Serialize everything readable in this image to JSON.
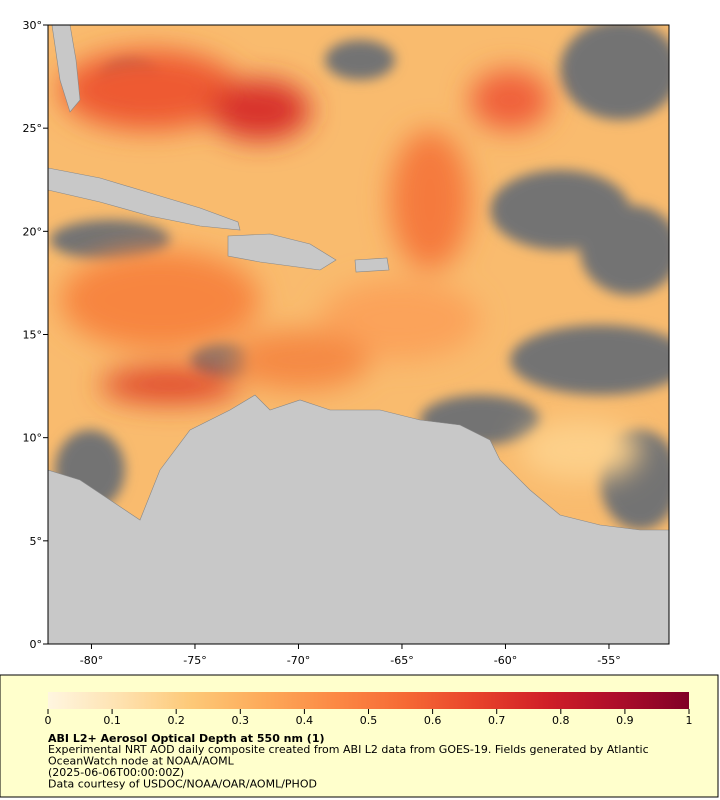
{
  "map": {
    "xlim": [
      -82.1,
      -52.1
    ],
    "ylim": [
      0,
      30
    ],
    "xticks": [
      {
        "value": -80,
        "label": "-80°"
      },
      {
        "value": -75,
        "label": "-75°"
      },
      {
        "value": -70,
        "label": "-70°"
      },
      {
        "value": -65,
        "label": "-65°"
      },
      {
        "value": -60,
        "label": "-60°"
      },
      {
        "value": -55,
        "label": "-55°"
      }
    ],
    "yticks": [
      {
        "value": 0,
        "label": "0°"
      },
      {
        "value": 5,
        "label": "5°"
      },
      {
        "value": 10,
        "label": "10°"
      },
      {
        "value": 15,
        "label": "15°"
      },
      {
        "value": 20,
        "label": "20°"
      },
      {
        "value": 25,
        "label": "25°"
      },
      {
        "value": 30,
        "label": "30°"
      }
    ]
  },
  "colorbar": {
    "lim": [
      0,
      1
    ],
    "ticks": [
      0,
      0.1,
      0.2,
      0.3,
      0.4,
      0.5,
      0.6,
      0.7,
      0.8,
      0.9,
      1
    ],
    "colors": [
      "#fff6e0",
      "#fee2b0",
      "#fdc978",
      "#fdab5a",
      "#fc8a45",
      "#f66a35",
      "#e8432b",
      "#d01f27",
      "#ad0d2a",
      "#800026"
    ]
  },
  "caption": {
    "title": "ABI L2+ Aerosol Optical Depth at 550 nm (1)",
    "lines": [
      "Experimental NRT AOD daily composite created from ABI L2 data from GOES-19. Fields generated by Atlantic",
      "OceanWatch node at NOAA/AOML",
      "(2025-06-06T00:00:00Z)",
      "Data courtesy of USDOC/NOAA/OAR/AOML/PHOD"
    ]
  }
}
